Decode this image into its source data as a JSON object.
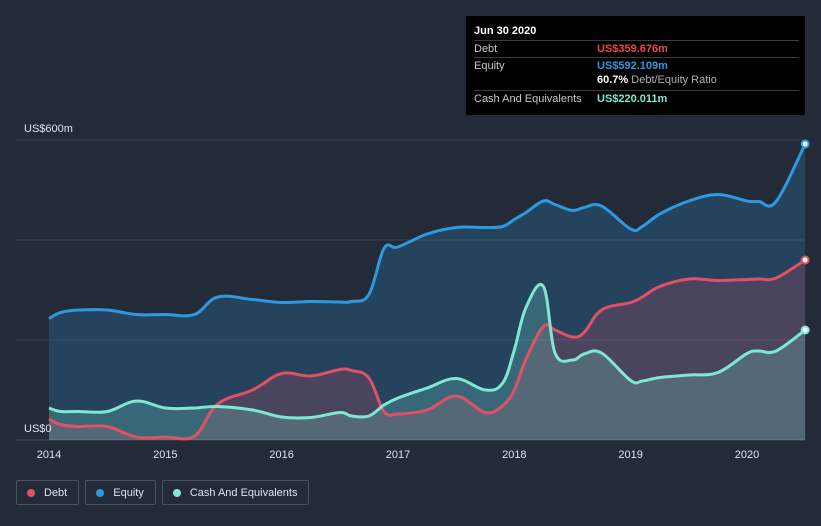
{
  "tooltip": {
    "date": "Jun 30 2020",
    "rows": [
      {
        "label": "Debt",
        "value": "US$359.676m",
        "color": "#e84855"
      },
      {
        "label": "Equity",
        "value": "US$592.109m",
        "color": "#2d9ae0"
      },
      {
        "label": "Cash And Equivalents",
        "value": "US$220.011m",
        "color": "#7ee8d5"
      }
    ],
    "ratio_value": "60.7%",
    "ratio_label": "Debt/Equity Ratio"
  },
  "legend": [
    {
      "label": "Debt",
      "color": "#e05263"
    },
    {
      "label": "Equity",
      "color": "#2d9ae0"
    },
    {
      "label": "Cash And Equivalents",
      "color": "#7ee8d5"
    }
  ],
  "chart_data": {
    "type": "area",
    "ylim": [
      0,
      600
    ],
    "xlim": [
      2014.0,
      2020.5
    ],
    "y_tick_labels": [
      {
        "value": 600,
        "label": "US$600m"
      },
      {
        "value": 0,
        "label": "US$0"
      }
    ],
    "x_ticks": [
      2014,
      2015,
      2016,
      2017,
      2018,
      2019,
      2020
    ],
    "series": [
      {
        "name": "Equity",
        "color": "#2d9ae0",
        "x": [
          2014.0,
          2014.1,
          2014.25,
          2014.5,
          2014.75,
          2015.0,
          2015.25,
          2015.45,
          2015.75,
          2016.0,
          2016.25,
          2016.5,
          2016.6,
          2016.75,
          2016.88,
          2017.0,
          2017.25,
          2017.5,
          2017.75,
          2017.9,
          2018.0,
          2018.1,
          2018.25,
          2018.35,
          2018.5,
          2018.6,
          2018.75,
          2019.0,
          2019.1,
          2019.25,
          2019.5,
          2019.75,
          2020.0,
          2020.1,
          2020.25,
          2020.5
        ],
        "y": [
          243,
          255,
          260,
          260,
          251,
          251,
          251,
          286,
          281,
          275,
          277,
          276,
          277,
          291,
          383,
          386,
          412,
          425,
          425,
          427,
          441,
          455,
          478,
          471,
          459,
          465,
          468,
          422,
          427,
          452,
          478,
          491,
          478,
          477,
          477,
          592
        ]
      },
      {
        "name": "Debt",
        "color": "#e05263",
        "x": [
          2014.0,
          2014.1,
          2014.25,
          2014.5,
          2014.75,
          2015.0,
          2015.25,
          2015.45,
          2015.75,
          2016.0,
          2016.25,
          2016.5,
          2016.6,
          2016.75,
          2016.88,
          2017.0,
          2017.25,
          2017.5,
          2017.75,
          2017.9,
          2018.0,
          2018.1,
          2018.25,
          2018.35,
          2018.5,
          2018.6,
          2018.75,
          2019.0,
          2019.1,
          2019.25,
          2019.5,
          2019.75,
          2020.0,
          2020.1,
          2020.25,
          2020.5
        ],
        "y": [
          42,
          31,
          27,
          27,
          6,
          6,
          8,
          72,
          100,
          133,
          128,
          141,
          139,
          124,
          57,
          52,
          60,
          88,
          55,
          69,
          100,
          162,
          227,
          220,
          206,
          215,
          260,
          275,
          286,
          307,
          322,
          319,
          321,
          322,
          324,
          360
        ]
      },
      {
        "name": "Cash And Equivalents",
        "color": "#7ee8d5",
        "x": [
          2014.0,
          2014.1,
          2014.25,
          2014.5,
          2014.75,
          2015.0,
          2015.25,
          2015.45,
          2015.75,
          2016.0,
          2016.25,
          2016.5,
          2016.6,
          2016.75,
          2016.88,
          2017.0,
          2017.25,
          2017.5,
          2017.75,
          2017.9,
          2018.0,
          2018.1,
          2018.25,
          2018.35,
          2018.5,
          2018.6,
          2018.75,
          2019.0,
          2019.1,
          2019.25,
          2019.5,
          2019.75,
          2020.0,
          2020.1,
          2020.25,
          2020.5
        ],
        "y": [
          64,
          57,
          57,
          57,
          78,
          64,
          64,
          67,
          60,
          46,
          45,
          55,
          48,
          48,
          70,
          84,
          104,
          123,
          100,
          114,
          180,
          265,
          307,
          174,
          160,
          172,
          174,
          119,
          118,
          125,
          130,
          135,
          173,
          178,
          178,
          220
        ]
      }
    ],
    "grid": true,
    "legend_position": "bottom-left"
  }
}
